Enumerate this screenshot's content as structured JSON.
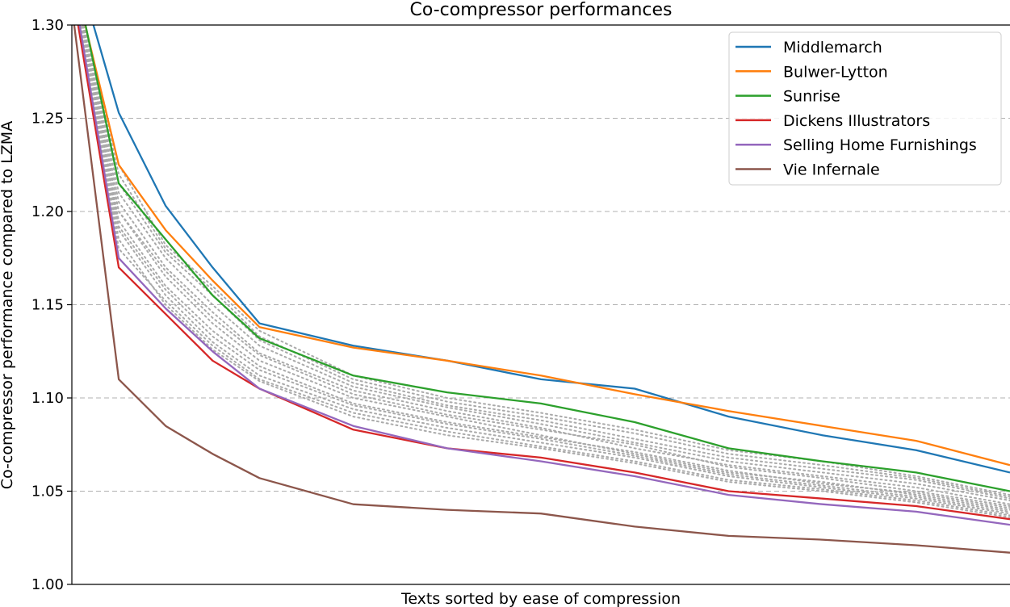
{
  "chart_data": {
    "type": "line",
    "title": "Co-compressor performances",
    "xlabel": "Texts sorted by ease of compression",
    "ylabel": "Co-compressor performance compared to LZMA",
    "ylim": [
      1.0,
      1.3
    ],
    "yticks": [
      "1.00",
      "1.05",
      "1.10",
      "1.15",
      "1.20",
      "1.25",
      "1.30"
    ],
    "xticks": [],
    "grid": "y-dashed",
    "legend_position": "top-right",
    "x": [
      0,
      5,
      10,
      15,
      20,
      30,
      40,
      50,
      60,
      70,
      80,
      90,
      100
    ],
    "series": [
      {
        "name": "Middlemarch",
        "color": "#1f77b4",
        "values": [
          1.34,
          1.253,
          1.203,
          1.17,
          1.14,
          1.128,
          1.12,
          1.11,
          1.105,
          1.09,
          1.08,
          1.072,
          1.06
        ]
      },
      {
        "name": "Bulwer-Lytton",
        "color": "#ff7f0e",
        "values": [
          1.33,
          1.225,
          1.19,
          1.163,
          1.138,
          1.127,
          1.12,
          1.112,
          1.102,
          1.093,
          1.085,
          1.077,
          1.064
        ]
      },
      {
        "name": "Sunrise",
        "color": "#2ca02c",
        "values": [
          1.335,
          1.215,
          1.185,
          1.155,
          1.132,
          1.112,
          1.103,
          1.097,
          1.087,
          1.073,
          1.066,
          1.06,
          1.05
        ]
      },
      {
        "name": "Dickens Illustrators",
        "color": "#d62728",
        "values": [
          1.32,
          1.17,
          1.145,
          1.12,
          1.105,
          1.083,
          1.073,
          1.068,
          1.06,
          1.05,
          1.046,
          1.042,
          1.035
        ]
      },
      {
        "name": "Selling Home Furnishings",
        "color": "#9467bd",
        "values": [
          1.325,
          1.175,
          1.148,
          1.125,
          1.105,
          1.085,
          1.073,
          1.066,
          1.058,
          1.048,
          1.043,
          1.039,
          1.032
        ]
      },
      {
        "name": "Vie Infernale",
        "color": "#8c564b",
        "values": [
          1.31,
          1.11,
          1.085,
          1.07,
          1.057,
          1.043,
          1.04,
          1.038,
          1.031,
          1.026,
          1.024,
          1.021,
          1.017
        ]
      }
    ],
    "background_series": [
      {
        "color": "#aaaaaa",
        "values": [
          1.33,
          1.2,
          1.165,
          1.14,
          1.12,
          1.1,
          1.09,
          1.08,
          1.07,
          1.06,
          1.055,
          1.048,
          1.04
        ]
      },
      {
        "color": "#aaaaaa",
        "values": [
          1.33,
          1.21,
          1.175,
          1.15,
          1.128,
          1.106,
          1.095,
          1.086,
          1.076,
          1.066,
          1.06,
          1.054,
          1.045
        ]
      },
      {
        "color": "#aaaaaa",
        "values": [
          1.33,
          1.19,
          1.155,
          1.13,
          1.112,
          1.094,
          1.084,
          1.076,
          1.068,
          1.058,
          1.052,
          1.046,
          1.038
        ]
      },
      {
        "color": "#aaaaaa",
        "values": [
          1.33,
          1.22,
          1.18,
          1.158,
          1.133,
          1.11,
          1.098,
          1.09,
          1.081,
          1.07,
          1.064,
          1.057,
          1.047
        ]
      },
      {
        "color": "#aaaaaa",
        "values": [
          1.33,
          1.185,
          1.15,
          1.126,
          1.109,
          1.09,
          1.08,
          1.073,
          1.065,
          1.055,
          1.05,
          1.044,
          1.036
        ]
      },
      {
        "color": "#aaaaaa",
        "values": [
          1.33,
          1.205,
          1.17,
          1.146,
          1.124,
          1.104,
          1.093,
          1.084,
          1.073,
          1.064,
          1.058,
          1.052,
          1.043
        ]
      },
      {
        "color": "#aaaaaa",
        "values": [
          1.33,
          1.195,
          1.16,
          1.136,
          1.117,
          1.097,
          1.087,
          1.079,
          1.071,
          1.061,
          1.054,
          1.049,
          1.041
        ]
      },
      {
        "color": "#aaaaaa",
        "values": [
          1.33,
          1.215,
          1.178,
          1.155,
          1.131,
          1.108,
          1.096,
          1.088,
          1.078,
          1.068,
          1.062,
          1.056,
          1.046
        ]
      },
      {
        "color": "#aaaaaa",
        "values": [
          1.33,
          1.18,
          1.152,
          1.128,
          1.11,
          1.092,
          1.082,
          1.074,
          1.066,
          1.056,
          1.051,
          1.045,
          1.037
        ]
      },
      {
        "color": "#aaaaaa",
        "values": [
          1.33,
          1.2,
          1.168,
          1.143,
          1.123,
          1.102,
          1.091,
          1.083,
          1.075,
          1.063,
          1.057,
          1.05,
          1.042
        ]
      },
      {
        "color": "#aaaaaa",
        "values": [
          1.33,
          1.225,
          1.182,
          1.16,
          1.136,
          1.112,
          1.1,
          1.092,
          1.083,
          1.072,
          1.066,
          1.058,
          1.048
        ]
      },
      {
        "color": "#aaaaaa",
        "values": [
          1.33,
          1.192,
          1.158,
          1.133,
          1.115,
          1.096,
          1.086,
          1.078,
          1.069,
          1.059,
          1.053,
          1.047,
          1.039
        ]
      }
    ]
  }
}
